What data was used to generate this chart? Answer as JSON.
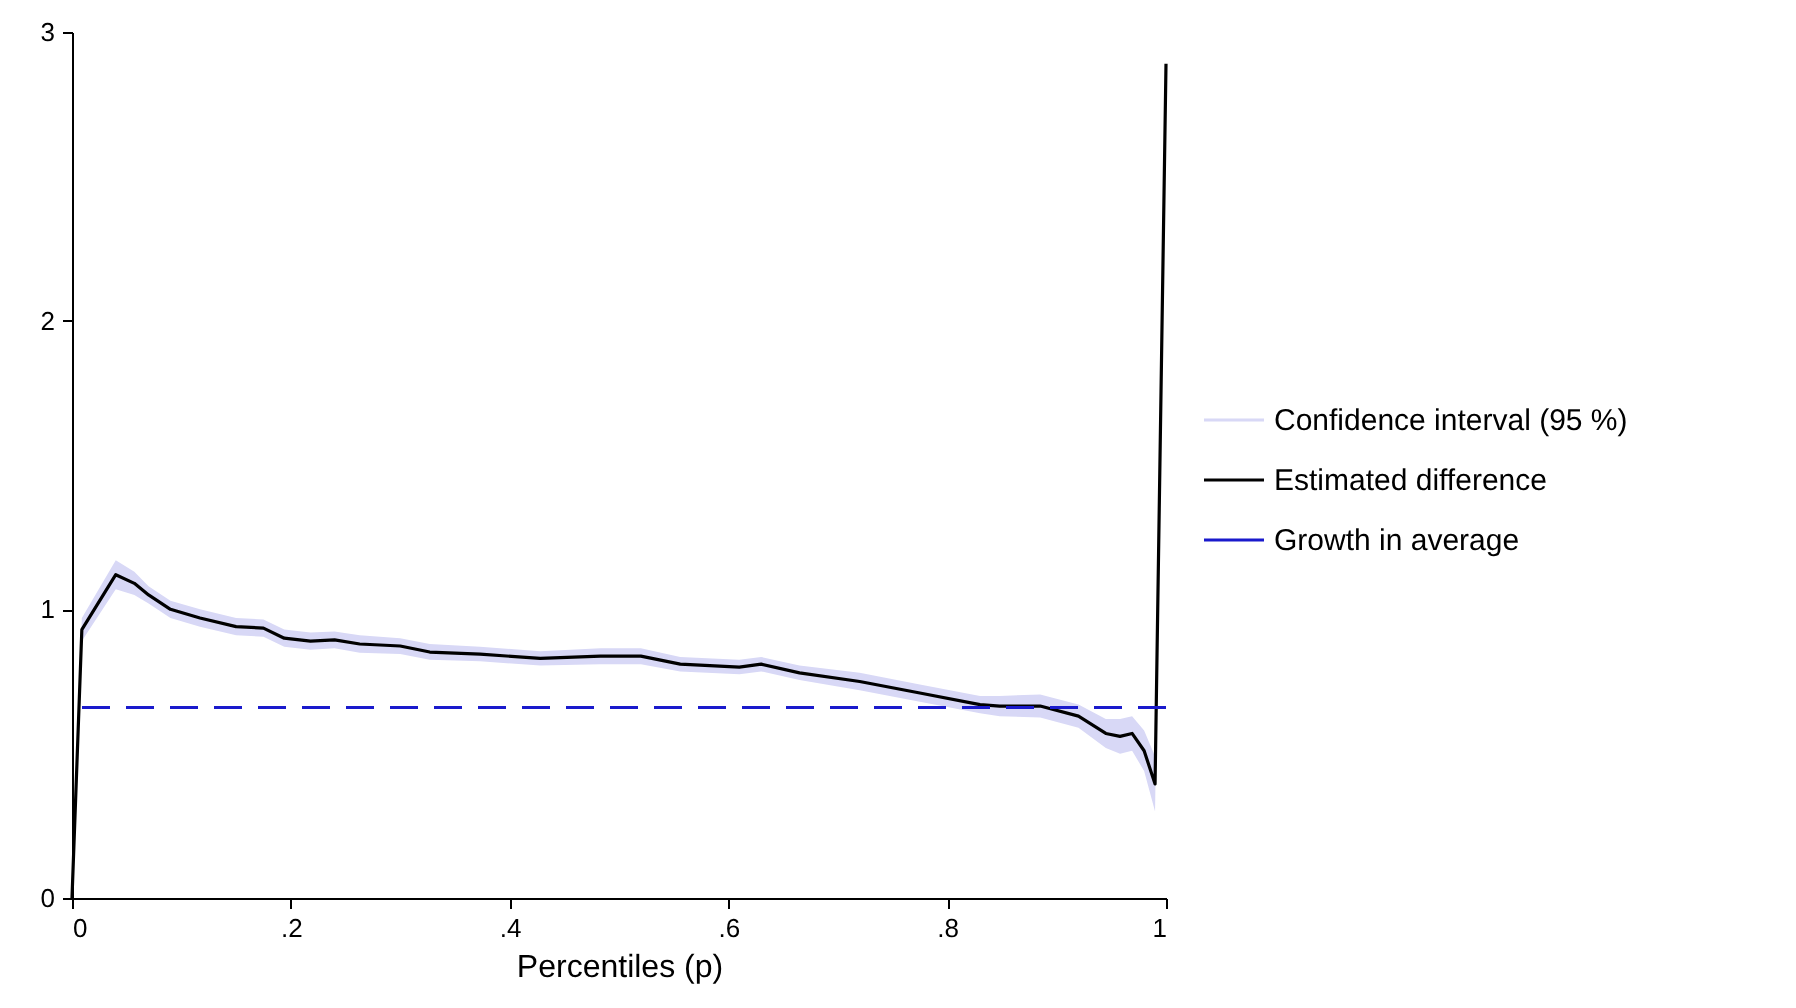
{
  "chart_data": {
    "type": "line",
    "xlabel": "Percentiles (p)",
    "x": [
      0,
      0.009,
      0.04,
      0.057,
      0.07,
      0.09,
      0.117,
      0.15,
      0.175,
      0.194,
      0.218,
      0.24,
      0.263,
      0.3,
      0.327,
      0.373,
      0.428,
      0.483,
      0.52,
      0.556,
      0.61,
      0.63,
      0.665,
      0.72,
      0.775,
      0.83,
      0.848,
      0.885,
      0.92,
      0.945,
      0.958,
      0.969,
      0.98,
      0.99,
      1.0
    ],
    "series": [
      {
        "name": "Estimated difference",
        "color": "#000000",
        "values": [
          0,
          0.93,
          1.12,
          1.09,
          1.05,
          1.0,
          0.97,
          0.94,
          0.935,
          0.9,
          0.89,
          0.894,
          0.88,
          0.873,
          0.852,
          0.845,
          0.83,
          0.838,
          0.838,
          0.81,
          0.8,
          0.81,
          0.78,
          0.75,
          0.71,
          0.67,
          0.665,
          0.665,
          0.63,
          0.57,
          0.56,
          0.57,
          0.51,
          0.395,
          2.89
        ],
        "lower": [
          0,
          0.89,
          1.07,
          1.05,
          1.02,
          0.97,
          0.94,
          0.91,
          0.905,
          0.87,
          0.86,
          0.865,
          0.85,
          0.845,
          0.825,
          0.82,
          0.805,
          0.81,
          0.81,
          0.785,
          0.775,
          0.785,
          0.755,
          0.72,
          0.68,
          0.64,
          0.63,
          0.625,
          0.59,
          0.52,
          0.5,
          0.51,
          0.44,
          0.3,
          2.89
        ],
        "upper": [
          0,
          0.97,
          1.17,
          1.13,
          1.08,
          1.03,
          1.0,
          0.97,
          0.965,
          0.93,
          0.92,
          0.923,
          0.91,
          0.9,
          0.88,
          0.87,
          0.855,
          0.865,
          0.865,
          0.835,
          0.825,
          0.835,
          0.805,
          0.78,
          0.74,
          0.7,
          0.7,
          0.705,
          0.67,
          0.62,
          0.62,
          0.63,
          0.58,
          0.49,
          2.89
        ]
      }
    ],
    "ref_lines": [
      {
        "axis": "y",
        "value": 0.66,
        "label": "Growth in average",
        "color": "#1a1acc",
        "line_style": "dashed"
      }
    ],
    "annotations": [
      "Confidence interval (95 %)"
    ],
    "xlim": [
      0,
      1
    ],
    "xticks": [
      0,
      {
        "value": 0.2,
        "label": ".2"
      },
      {
        "value": 0.4,
        "label": ".4"
      },
      {
        "value": 0.6,
        "label": ".6"
      },
      {
        "value": 0.8,
        "label": ".8"
      },
      1
    ],
    "ylim": [
      0,
      3
    ],
    "yticks": [
      0,
      1,
      2,
      3
    ],
    "grid": false,
    "legend": "right",
    "line_style": "solid",
    "marker": "none"
  }
}
